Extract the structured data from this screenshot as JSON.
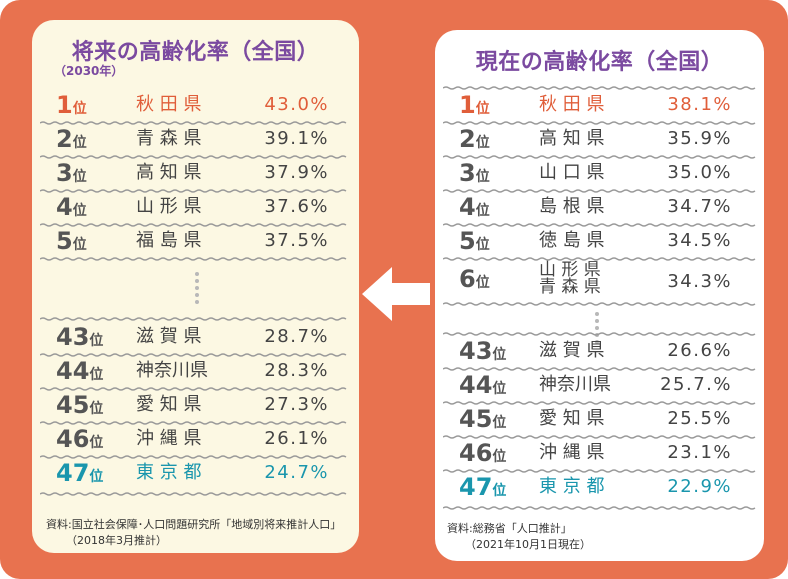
{
  "left": {
    "title": "将来の高齢化率（全国）",
    "subtitle": "（2030年）",
    "rows_top": [
      {
        "num": "1",
        "suf": "位",
        "pref": "秋 田 県",
        "pct": "43.0%",
        "style": "red"
      },
      {
        "num": "2",
        "suf": "位",
        "pref": "青 森 県",
        "pct": "39.1%",
        "style": ""
      },
      {
        "num": "3",
        "suf": "位",
        "pref": "高 知 県",
        "pct": "37.9%",
        "style": ""
      },
      {
        "num": "4",
        "suf": "位",
        "pref": "山 形 県",
        "pct": "37.6%",
        "style": ""
      },
      {
        "num": "5",
        "suf": "位",
        "pref": "福 島 県",
        "pct": "37.5%",
        "style": ""
      }
    ],
    "rows_bottom": [
      {
        "num": "43",
        "suf": "位",
        "pref": "滋 賀 県",
        "pct": "28.7%",
        "style": ""
      },
      {
        "num": "44",
        "suf": "位",
        "pref": "神奈川県",
        "pct": "28.3%",
        "style": ""
      },
      {
        "num": "45",
        "suf": "位",
        "pref": "愛 知 県",
        "pct": "27.3%",
        "style": ""
      },
      {
        "num": "46",
        "suf": "位",
        "pref": "沖 縄 県",
        "pct": "26.1%",
        "style": ""
      },
      {
        "num": "47",
        "suf": "位",
        "pref": "東 京 都",
        "pct": "24.7%",
        "style": "teal"
      }
    ],
    "source": "資料:国立社会保障･人口問題研究所「地域別将来推計人口」",
    "source_date": "（2018年3月推計）"
  },
  "right": {
    "title": "現在の高齢化率（全国）",
    "rows_top": [
      {
        "num": "1",
        "suf": "位",
        "pref": "秋 田 県",
        "pct": "38.1%",
        "style": "red"
      },
      {
        "num": "2",
        "suf": "位",
        "pref": "高 知 県",
        "pct": "35.9%",
        "style": ""
      },
      {
        "num": "3",
        "suf": "位",
        "pref": "山 口 県",
        "pct": "35.0%",
        "style": ""
      },
      {
        "num": "4",
        "suf": "位",
        "pref": "島 根 県",
        "pct": "34.7%",
        "style": ""
      },
      {
        "num": "5",
        "suf": "位",
        "pref": "徳 島 県",
        "pct": "34.5%",
        "style": ""
      }
    ],
    "row_sixth": {
      "num": "6",
      "suf": "位",
      "pref_a": "山 形 県",
      "pref_b": "青 森 県",
      "pct": "34.3%"
    },
    "rows_bottom": [
      {
        "num": "43",
        "suf": "位",
        "pref": "滋 賀 県",
        "pct": "26.6%",
        "style": ""
      },
      {
        "num": "44",
        "suf": "位",
        "pref": "神奈川県",
        "pct": "25.7.%",
        "style": ""
      },
      {
        "num": "45",
        "suf": "位",
        "pref": "愛 知 県",
        "pct": "25.5%",
        "style": ""
      },
      {
        "num": "46",
        "suf": "位",
        "pref": "沖 縄 県",
        "pct": "23.1%",
        "style": ""
      },
      {
        "num": "47",
        "suf": "位",
        "pref": "東 京 都",
        "pct": "22.9%",
        "style": "teal"
      }
    ],
    "source": "資料:総務省「人口推計」",
    "source_date": "（2021年10月1日現在）"
  },
  "colors": {
    "frame": "#e8724f",
    "left_panel": "#fcf8e3",
    "right_panel": "#ffffff",
    "title": "#7b4aa0",
    "rank_first": "#e05e3a",
    "rank_last": "#1a96ad",
    "text": "#444444",
    "separator": "#9a9a9a"
  },
  "icons": {
    "arrow": "left-arrow-icon",
    "ellipsis": "vertical-dots-icon"
  }
}
